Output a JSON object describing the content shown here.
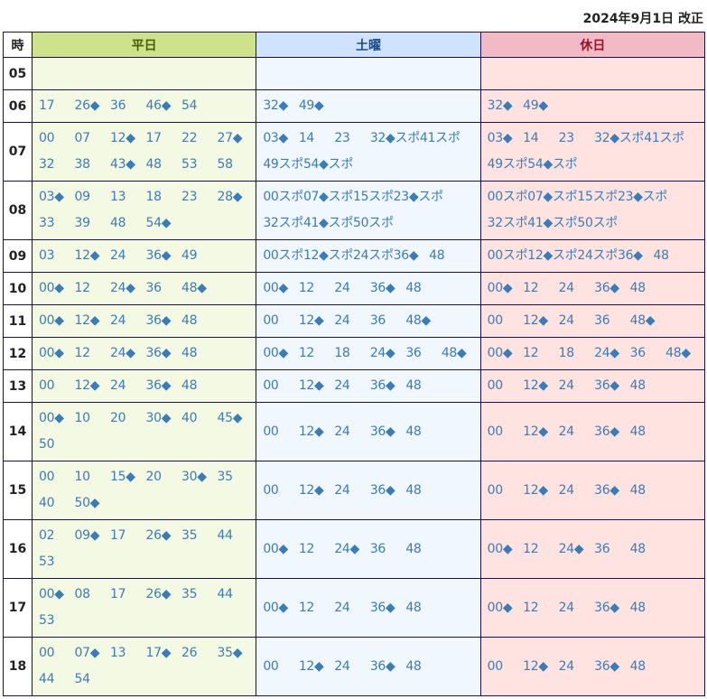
{
  "revision": "2024年9月1日 改正",
  "headers": {
    "hour": "時",
    "weekday": "平日",
    "saturday": "土曜",
    "holiday": "休日"
  },
  "colors": {
    "weekday": "#cde28b",
    "saturday": "#cfe2ff",
    "holiday": "#f2bac4",
    "minute": "#3a7cb8"
  },
  "rows": [
    {
      "hour": "05",
      "weekday": [],
      "saturday": [],
      "holiday": []
    },
    {
      "hour": "06",
      "weekday": [
        "17",
        "26◆",
        "36",
        "46◆",
        "54"
      ],
      "saturday": [
        "32◆",
        "49◆"
      ],
      "holiday": [
        "32◆",
        "49◆"
      ]
    },
    {
      "hour": "07",
      "weekday": [
        "00",
        "07",
        "12◆",
        "17",
        "22",
        "27◆",
        "32",
        "38",
        "43◆",
        "48",
        "53",
        "58"
      ],
      "saturday": [
        "03◆",
        "14",
        "23",
        "32◆スポ",
        "41スポ",
        "49スポ",
        "54◆スポ"
      ],
      "holiday": [
        "03◆",
        "14",
        "23",
        "32◆スポ",
        "41スポ",
        "49スポ",
        "54◆スポ"
      ]
    },
    {
      "hour": "08",
      "weekday": [
        "03◆",
        "09",
        "13",
        "18",
        "23",
        "28◆",
        "33",
        "39",
        "48",
        "54◆"
      ],
      "saturday": [
        "00スポ",
        "07◆スポ",
        "15スポ",
        "23◆スポ",
        "32スポ",
        "41◆スポ",
        "50スポ"
      ],
      "holiday": [
        "00スポ",
        "07◆スポ",
        "15スポ",
        "23◆スポ",
        "32スポ",
        "41◆スポ",
        "50スポ"
      ]
    },
    {
      "hour": "09",
      "weekday": [
        "03",
        "12◆",
        "24",
        "36◆",
        "49"
      ],
      "saturday": [
        "00スポ",
        "12◆スポ",
        "24スポ",
        "36◆",
        "48"
      ],
      "holiday": [
        "00スポ",
        "12◆スポ",
        "24スポ",
        "36◆",
        "48"
      ]
    },
    {
      "hour": "10",
      "weekday": [
        "00◆",
        "12",
        "24◆",
        "36",
        "48◆"
      ],
      "saturday": [
        "00◆",
        "12",
        "24",
        "36◆",
        "48"
      ],
      "holiday": [
        "00◆",
        "12",
        "24",
        "36◆",
        "48"
      ]
    },
    {
      "hour": "11",
      "weekday": [
        "00◆",
        "12◆",
        "24",
        "36◆",
        "48"
      ],
      "saturday": [
        "00",
        "12◆",
        "24",
        "36",
        "48◆"
      ],
      "holiday": [
        "00",
        "12◆",
        "24",
        "36",
        "48◆"
      ]
    },
    {
      "hour": "12",
      "weekday": [
        "00◆",
        "12",
        "24◆",
        "36◆",
        "48"
      ],
      "saturday": [
        "00◆",
        "12",
        "18",
        "24◆",
        "36",
        "48◆"
      ],
      "holiday": [
        "00◆",
        "12",
        "18",
        "24◆",
        "36",
        "48◆"
      ]
    },
    {
      "hour": "13",
      "weekday": [
        "00",
        "12◆",
        "24",
        "36◆",
        "48"
      ],
      "saturday": [
        "00",
        "12◆",
        "24",
        "36◆",
        "48"
      ],
      "holiday": [
        "00",
        "12◆",
        "24",
        "36◆",
        "48"
      ]
    },
    {
      "hour": "14",
      "weekday": [
        "00◆",
        "10",
        "20",
        "30◆",
        "40",
        "45◆",
        "50"
      ],
      "saturday": [
        "00",
        "12◆",
        "24",
        "36◆",
        "48"
      ],
      "holiday": [
        "00",
        "12◆",
        "24",
        "36◆",
        "48"
      ]
    },
    {
      "hour": "15",
      "weekday": [
        "00",
        "10",
        "15◆",
        "20",
        "30◆",
        "35",
        "40",
        "50◆"
      ],
      "saturday": [
        "00",
        "12◆",
        "24",
        "36◆",
        "48"
      ],
      "holiday": [
        "00",
        "12◆",
        "24",
        "36◆",
        "48"
      ]
    },
    {
      "hour": "16",
      "weekday": [
        "02",
        "09◆",
        "17",
        "26◆",
        "35",
        "44",
        "53"
      ],
      "saturday": [
        "00◆",
        "12",
        "24◆",
        "36",
        "48"
      ],
      "holiday": [
        "00◆",
        "12",
        "24◆",
        "36",
        "48"
      ]
    },
    {
      "hour": "17",
      "weekday": [
        "00◆",
        "08",
        "17",
        "26◆",
        "35",
        "44",
        "53"
      ],
      "saturday": [
        "00◆",
        "12",
        "24",
        "36◆",
        "48"
      ],
      "holiday": [
        "00◆",
        "12",
        "24",
        "36◆",
        "48"
      ]
    },
    {
      "hour": "18",
      "weekday": [
        "00",
        "07◆",
        "13",
        "17◆",
        "26",
        "35◆",
        "44",
        "54"
      ],
      "saturday": [
        "00",
        "12◆",
        "24",
        "36◆",
        "48"
      ],
      "holiday": [
        "00",
        "12◆",
        "24",
        "36◆",
        "48"
      ]
    }
  ]
}
